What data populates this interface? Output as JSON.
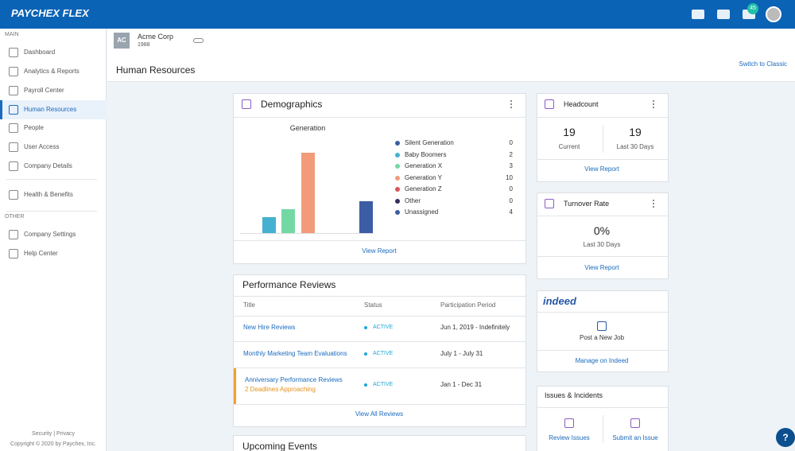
{
  "header": {
    "logo": "PAYCHEX FLEX",
    "notifications": "45"
  },
  "sidebar": {
    "sections": [
      {
        "label": "MAIN",
        "items": [
          "Dashboard",
          "Analytics & Reports",
          "Payroll Center",
          "Human Resources",
          "People",
          "User Access",
          "Company Details",
          "Health & Benefits"
        ]
      },
      {
        "label": "OTHER",
        "items": [
          "Company Settings",
          "Help Center"
        ]
      }
    ],
    "footer": [
      "Security | Privacy",
      "Copyright © 2020 by Paychex, Inc."
    ]
  },
  "company": {
    "initials": "AC",
    "name": "Acme Corp",
    "id": "1988"
  },
  "page": {
    "title": "Human Resources",
    "switch_link": "Switch to Classic"
  },
  "demographics": {
    "title": "Demographics",
    "chart_title": "Generation",
    "items": [
      {
        "name": "Silent Generation",
        "value": 0,
        "color": "#3a5fa0"
      },
      {
        "name": "Baby Boomers",
        "value": 2,
        "color": "#45b0cf"
      },
      {
        "name": "Generation X",
        "value": 3,
        "color": "#74d8a4"
      },
      {
        "name": "Generation Y",
        "value": 10,
        "color": "#f29b7b"
      },
      {
        "name": "Generation Z",
        "value": 0,
        "color": "#d9545a"
      },
      {
        "name": "Other",
        "value": 0,
        "color": "#3b2d5c"
      },
      {
        "name": "Unassigned",
        "value": 4,
        "color": "#3c5da3"
      }
    ],
    "link": "View Report"
  },
  "performance_reviews": {
    "title": "Performance Reviews",
    "columns": [
      "Title",
      "Status",
      "Participation Period"
    ],
    "rows": [
      {
        "title": "New Hire Reviews",
        "status": "ACTIVE",
        "period": "Jun 1, 2019 - Indefinitely"
      },
      {
        "title": "Monthly Marketing Team Evaluations",
        "status": "ACTIVE",
        "period": "July 1 - July 31"
      },
      {
        "title": "Anniversary Performance Reviews",
        "note": "2 Deadlines Approaching",
        "status": "ACTIVE",
        "period": "Jan 1 - Dec 31"
      }
    ],
    "link": "View All Reviews"
  },
  "upcoming_events": {
    "title": "Upcoming Events"
  },
  "headcount": {
    "title": "Headcount",
    "current": 19,
    "current_label": "Current",
    "last_30": 19,
    "last_30_label": "Last 30 Days",
    "link": "View Report"
  },
  "turnover": {
    "title": "Turnover Rate",
    "value": "0%",
    "label": "Last 30 Days",
    "link": "View Report"
  },
  "indeed": {
    "logo": "indeed",
    "action": "Post a New Job",
    "link": "Manage on Indeed"
  },
  "issues": {
    "title": "Issues & Incidents",
    "actions": [
      "Review Issues",
      "Submit an Issue"
    ]
  },
  "help": "?"
}
